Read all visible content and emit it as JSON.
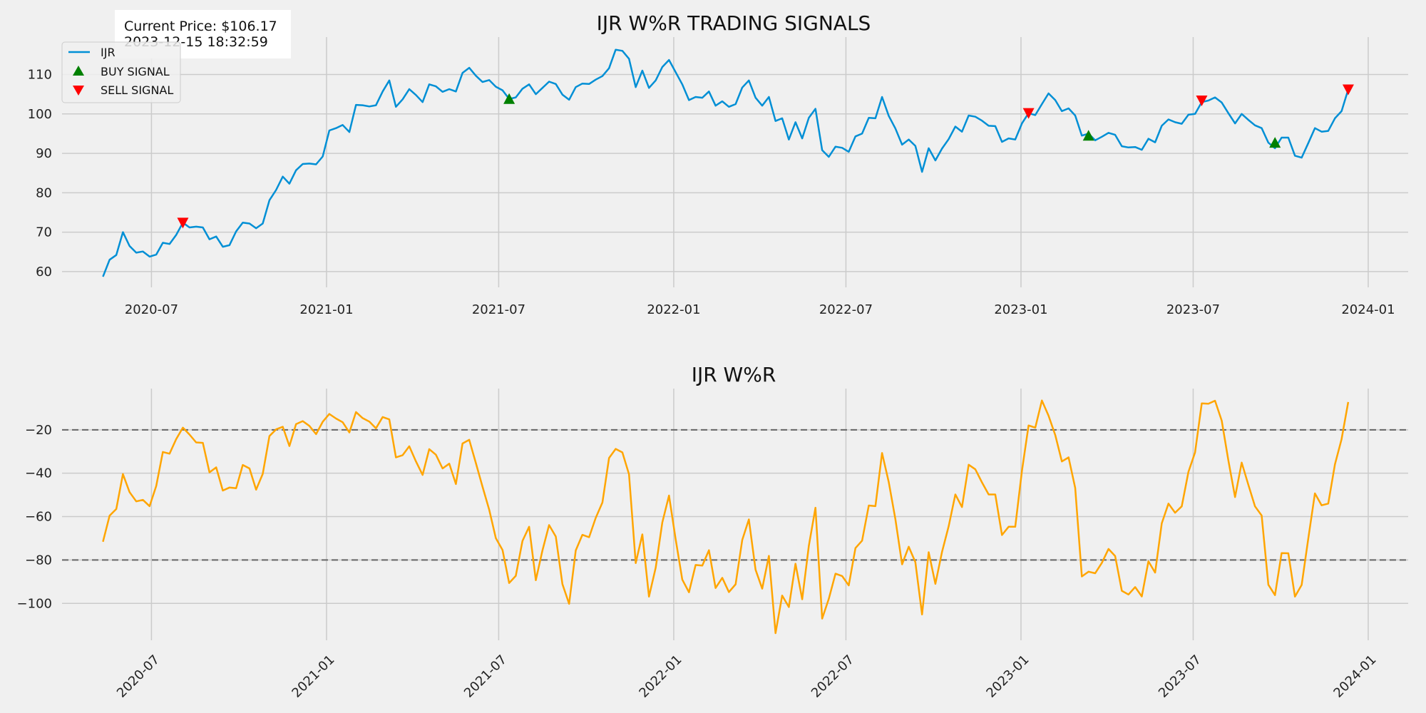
{
  "chart_data": [
    {
      "type": "line",
      "title": "IJR W%R TRADING SIGNALS",
      "info_box": {
        "price_text": "Current Price: $106.17",
        "time_text": "2023-12-15 18:32:59"
      },
      "legend": {
        "placement": "upper-left",
        "entries": [
          {
            "label": "IJR",
            "kind": "line",
            "color": "#008fd5"
          },
          {
            "label": "BUY SIGNAL",
            "kind": "triangle-up",
            "color": "#008000"
          },
          {
            "label": "SELL SIGNAL",
            "kind": "triangle-down",
            "color": "#ff0000"
          }
        ]
      },
      "xlim": [
        "2020-03-29",
        "2024-02-12"
      ],
      "ylim": [
        56,
        119.5
      ],
      "x_ticks": [
        "2020-07",
        "2021-01",
        "2021-07",
        "2022-01",
        "2022-07",
        "2023-01",
        "2023-07",
        "2024-01"
      ],
      "y_ticks": [
        60,
        70,
        80,
        90,
        100,
        110
      ],
      "grid": true,
      "series": [
        {
          "name": "IJR",
          "color": "#008fd5",
          "x": [
            "2020-05-11",
            "2020-05-18",
            "2020-05-25",
            "2020-06-01",
            "2020-06-08",
            "2020-06-15",
            "2020-06-22",
            "2020-06-29",
            "2020-07-06",
            "2020-07-13",
            "2020-07-20",
            "2020-07-27",
            "2020-08-03",
            "2020-08-10",
            "2020-08-17",
            "2020-08-24",
            "2020-08-31",
            "2020-09-07",
            "2020-09-14",
            "2020-09-21",
            "2020-09-28",
            "2020-10-05",
            "2020-10-12",
            "2020-10-19",
            "2020-10-26",
            "2020-11-02",
            "2020-11-09",
            "2020-11-16",
            "2020-11-23",
            "2020-11-30",
            "2020-12-07",
            "2020-12-14",
            "2020-12-21",
            "2020-12-28",
            "2021-01-04",
            "2021-01-11",
            "2021-01-18",
            "2021-01-25",
            "2021-02-01",
            "2021-02-08",
            "2021-02-15",
            "2021-02-22",
            "2021-03-01",
            "2021-03-08",
            "2021-03-15",
            "2021-03-22",
            "2021-03-29",
            "2021-04-05",
            "2021-04-12",
            "2021-04-19",
            "2021-04-26",
            "2021-05-03",
            "2021-05-10",
            "2021-05-17",
            "2021-05-24",
            "2021-05-31",
            "2021-06-07",
            "2021-06-14",
            "2021-06-21",
            "2021-06-28",
            "2021-07-05",
            "2021-07-12",
            "2021-07-19",
            "2021-07-26",
            "2021-08-02",
            "2021-08-09",
            "2021-08-16",
            "2021-08-23",
            "2021-08-30",
            "2021-09-06",
            "2021-09-13",
            "2021-09-20",
            "2021-09-27",
            "2021-10-04",
            "2021-10-11",
            "2021-10-18",
            "2021-10-25",
            "2021-11-01",
            "2021-11-08",
            "2021-11-15",
            "2021-11-22",
            "2021-11-29",
            "2021-12-06",
            "2021-12-13",
            "2021-12-20",
            "2021-12-27",
            "2022-01-03",
            "2022-01-10",
            "2022-01-17",
            "2022-01-24",
            "2022-01-31",
            "2022-02-07",
            "2022-02-14",
            "2022-02-21",
            "2022-02-28",
            "2022-03-07",
            "2022-03-14",
            "2022-03-21",
            "2022-03-28",
            "2022-04-04",
            "2022-04-11",
            "2022-04-18",
            "2022-04-25",
            "2022-05-02",
            "2022-05-09",
            "2022-05-16",
            "2022-05-23",
            "2022-05-30",
            "2022-06-06",
            "2022-06-13",
            "2022-06-20",
            "2022-06-27",
            "2022-07-04",
            "2022-07-11",
            "2022-07-18",
            "2022-07-25",
            "2022-08-01",
            "2022-08-08",
            "2022-08-15",
            "2022-08-22",
            "2022-08-29",
            "2022-09-05",
            "2022-09-12",
            "2022-09-19",
            "2022-09-26",
            "2022-10-03",
            "2022-10-10",
            "2022-10-17",
            "2022-10-24",
            "2022-10-31",
            "2022-11-07",
            "2022-11-14",
            "2022-11-21",
            "2022-11-28",
            "2022-12-05",
            "2022-12-12",
            "2022-12-19",
            "2022-12-26",
            "2023-01-02",
            "2023-01-09",
            "2023-01-16",
            "2023-01-23",
            "2023-01-30",
            "2023-02-06",
            "2023-02-13",
            "2023-02-20",
            "2023-02-27",
            "2023-03-06",
            "2023-03-13",
            "2023-03-20",
            "2023-03-27",
            "2023-04-03",
            "2023-04-10",
            "2023-04-17",
            "2023-04-24",
            "2023-05-01",
            "2023-05-08",
            "2023-05-15",
            "2023-05-22",
            "2023-05-29",
            "2023-06-05",
            "2023-06-12",
            "2023-06-19",
            "2023-06-26",
            "2023-07-03",
            "2023-07-10",
            "2023-07-17",
            "2023-07-24",
            "2023-07-31",
            "2023-08-07",
            "2023-08-14",
            "2023-08-21",
            "2023-08-28",
            "2023-09-04",
            "2023-09-11",
            "2023-09-18",
            "2023-09-25",
            "2023-10-02",
            "2023-10-09",
            "2023-10-16",
            "2023-10-23",
            "2023-10-30",
            "2023-11-06",
            "2023-11-13",
            "2023-11-20",
            "2023-11-27",
            "2023-12-04",
            "2023-12-11"
          ],
          "values": [
            58.7,
            63.0,
            64.2,
            70.0,
            66.5,
            64.8,
            65.1,
            63.8,
            64.3,
            67.3,
            67.0,
            69.3,
            72.4,
            71.2,
            71.4,
            71.2,
            68.2,
            68.9,
            66.3,
            66.7,
            70.2,
            72.4,
            72.2,
            71.0,
            72.2,
            78.1,
            80.7,
            84.1,
            82.3,
            85.7,
            87.3,
            87.4,
            87.2,
            89.2,
            95.8,
            96.4,
            97.2,
            95.4,
            102.3,
            102.2,
            101.9,
            102.2,
            105.7,
            108.5,
            101.8,
            103.7,
            106.3,
            104.8,
            103.0,
            107.5,
            107.0,
            105.6,
            106.3,
            105.7,
            110.4,
            111.7,
            109.7,
            108.1,
            108.6,
            106.9,
            106.0,
            103.8,
            104.2,
            106.4,
            107.5,
            105.0,
            106.6,
            108.2,
            107.6,
            104.9,
            103.6,
            106.8,
            107.7,
            107.6,
            108.7,
            109.6,
            111.6,
            116.3,
            116.0,
            114.0,
            106.8,
            111.0,
            106.6,
            108.5,
            111.9,
            113.7,
            110.6,
            107.5,
            103.5,
            104.3,
            104.1,
            105.7,
            102.1,
            103.2,
            101.8,
            102.5,
            106.7,
            108.5,
            104.1,
            102.1,
            104.3,
            98.2,
            98.9,
            93.5,
            97.9,
            93.8,
            99.0,
            101.3,
            90.8,
            89.1,
            91.7,
            91.4,
            90.4,
            94.3,
            95.0,
            99.0,
            98.9,
            104.3,
            99.5,
            96.3,
            92.2,
            93.5,
            91.9,
            85.3,
            91.3,
            88.2,
            91.2,
            93.6,
            96.8,
            95.5,
            99.6,
            99.3,
            98.3,
            97.0,
            96.9,
            92.9,
            93.8,
            93.5,
            97.6,
            100.2,
            99.7,
            102.5,
            105.2,
            103.5,
            100.7,
            101.4,
            99.6,
            94.5,
            95.0,
            93.3,
            94.2,
            95.2,
            94.7,
            91.8,
            91.5,
            91.6,
            90.9,
            93.7,
            92.8,
            97.0,
            98.6,
            97.9,
            97.5,
            99.8,
            100.0,
            103.0,
            103.4,
            104.2,
            102.9,
            100.2,
            97.6,
            100.0,
            98.5,
            97.1,
            96.4,
            92.7,
            91.3,
            94.0,
            94.0,
            89.4,
            88.9,
            92.6,
            96.4,
            95.5,
            95.7,
            98.9,
            100.7,
            106.2
          ]
        }
      ],
      "buy_signals": {
        "x": [
          "2021-07-12",
          "2023-03-13",
          "2023-09-25"
        ],
        "y": [
          103.8,
          94.5,
          92.7
        ]
      },
      "sell_signals": {
        "x": [
          "2020-08-03",
          "2023-01-09",
          "2023-07-10",
          "2023-12-11"
        ],
        "y": [
          72.4,
          100.2,
          103.4,
          106.2
        ]
      }
    },
    {
      "type": "line",
      "title": "IJR W%R",
      "xlim": [
        "2020-03-29",
        "2024-02-12"
      ],
      "ylim": [
        -117,
        -1
      ],
      "x_ticks": [
        "2020-07",
        "2021-01",
        "2021-07",
        "2022-01",
        "2022-07",
        "2023-01",
        "2023-07",
        "2024-01"
      ],
      "x_tick_rotation": 45,
      "y_ticks": [
        -20,
        -40,
        -60,
        -80,
        -100
      ],
      "hlines": [
        {
          "y": -20,
          "style": "dashed",
          "color": "#666666"
        },
        {
          "y": -80,
          "style": "dashed",
          "color": "#666666"
        }
      ],
      "grid": true,
      "series": [
        {
          "color": "#ffa500",
          "x_ref": "same as upper chart",
          "values": [
            -71.6,
            -59.6,
            -56.5,
            -40.4,
            -48.7,
            -53.0,
            -52.3,
            -55.2,
            -45.9,
            -30.2,
            -31.0,
            -24.3,
            -19.0,
            -22.2,
            -25.8,
            -26.0,
            -39.6,
            -37.3,
            -48.0,
            -46.6,
            -46.9,
            -36.2,
            -37.8,
            -47.6,
            -40.3,
            -22.9,
            -19.8,
            -18.6,
            -27.5,
            -17.4,
            -16.0,
            -18.2,
            -22.0,
            -16.3,
            -12.7,
            -14.8,
            -16.5,
            -21.2,
            -11.8,
            -14.6,
            -16.2,
            -19.3,
            -14.1,
            -15.2,
            -32.7,
            -31.7,
            -27.6,
            -34.6,
            -40.8,
            -28.9,
            -31.5,
            -37.8,
            -35.6,
            -45.0,
            -26.3,
            -24.6,
            -35.3,
            -46.2,
            -56.8,
            -69.9,
            -75.4,
            -90.6,
            -87.3,
            -71.2,
            -64.7,
            -89.3,
            -75.6,
            -63.9,
            -69.2,
            -91.1,
            -100.2,
            -75.6,
            -68.4,
            -69.5,
            -60.6,
            -53.5,
            -33.0,
            -28.8,
            -30.4,
            -40.5,
            -81.4,
            -68.2,
            -96.9,
            -83.6,
            -62.7,
            -50.3,
            -70.4,
            -89.0,
            -94.9,
            -82.3,
            -82.6,
            -75.5,
            -92.9,
            -88.2,
            -94.8,
            -91.2,
            -70.8,
            -61.3,
            -84.5,
            -93.2,
            -78.1,
            -113.7,
            -96.4,
            -101.7,
            -81.7,
            -98.1,
            -73.5,
            -55.9,
            -107.0,
            -97.9,
            -86.3,
            -87.4,
            -91.7,
            -74.5,
            -71.1,
            -54.9,
            -55.2,
            -30.7,
            -44.1,
            -61.2,
            -82.0,
            -73.9,
            -81.0,
            -105.1,
            -76.4,
            -91.0,
            -76.3,
            -64.5,
            -49.8,
            -55.6,
            -36.1,
            -38.2,
            -44.2,
            -49.8,
            -49.8,
            -68.5,
            -64.7,
            -64.7,
            -38.9,
            -18.0,
            -19.0,
            -6.5,
            -13.5,
            -22.4,
            -34.6,
            -32.7,
            -46.8,
            -87.6,
            -85.4,
            -86.1,
            -81.3,
            -74.9,
            -78.2,
            -94.2,
            -95.9,
            -92.5,
            -96.8,
            -80.6,
            -85.8,
            -63.1,
            -54.0,
            -58.2,
            -55.3,
            -39.4,
            -30.4,
            -7.8,
            -8.0,
            -6.6,
            -15.8,
            -34.1,
            -51.0,
            -35.1,
            -45.3,
            -55.3,
            -59.5,
            -91.4,
            -96.2,
            -76.8,
            -76.9,
            -96.9,
            -91.5,
            -70.1,
            -49.3,
            -54.8,
            -54.0,
            -35.9,
            -24.3,
            -7.2
          ]
        }
      ]
    }
  ]
}
